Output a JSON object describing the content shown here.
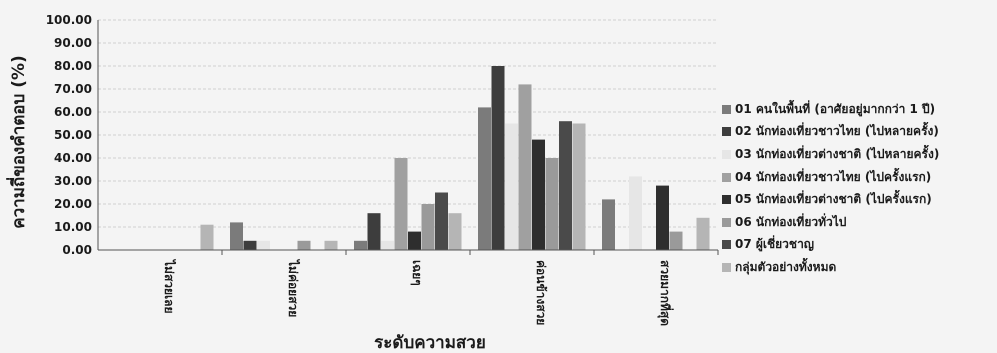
{
  "chart_data": {
    "type": "bar",
    "title": "",
    "xlabel": "ระดับความสวย",
    "ylabel": "ความถี่ของคำตอบ (%)",
    "ylim": [
      0,
      100
    ],
    "yticks": [
      "0.00",
      "10.00",
      "20.00",
      "30.00",
      "40.00",
      "50.00",
      "60.00",
      "70.00",
      "80.00",
      "90.00",
      "100.00"
    ],
    "grid": true,
    "legend_position": "right",
    "categories": [
      "ไม่สวยเลย",
      "ไม่ค่อยสวย",
      "เฉยๆ",
      "ค่อนข้างสวย",
      "สวยมากที่สุด"
    ],
    "series": [
      {
        "name": "01 คนในพื้นที่ (อาศัยอยู่มากกว่า 1 ปี)",
        "color": "#7b7b7b",
        "values": [
          0,
          12,
          4,
          62,
          22
        ]
      },
      {
        "name": "02 นักท่องเที่ยวชาวไทย (ไปหลายครั้ง)",
        "color": "#3d3d3d",
        "values": [
          0,
          4,
          16,
          80,
          0
        ]
      },
      {
        "name": "03 นักท่องเที่ยวต่างชาติ (ไปหลายครั้ง)",
        "color": "#e6e6e6",
        "values": [
          0,
          4,
          4,
          55,
          32
        ]
      },
      {
        "name": "04 นักท่องเที่ยวชาวไทย (ไปครั้งแรก)",
        "color": "#a0a0a0",
        "values": [
          0,
          0,
          40,
          72,
          0
        ]
      },
      {
        "name": "05 นักท่องเที่ยวต่างชาติ (ไปครั้งแรก)",
        "color": "#2e2e2e",
        "values": [
          0,
          0,
          8,
          48,
          28
        ]
      },
      {
        "name": "06 นักท่องเที่ยวทั่วไป",
        "color": "#9a9a9a",
        "values": [
          0,
          4,
          20,
          40,
          8
        ]
      },
      {
        "name": "07 ผู้เชี่ยวชาญ",
        "color": "#4a4a4a",
        "values": [
          0,
          0,
          25,
          56,
          0
        ]
      },
      {
        "name": "กลุ่มตัวอย่างทั้งหมด",
        "color": "#b5b5b5",
        "values": [
          11,
          4,
          16,
          55,
          14
        ]
      }
    ]
  }
}
